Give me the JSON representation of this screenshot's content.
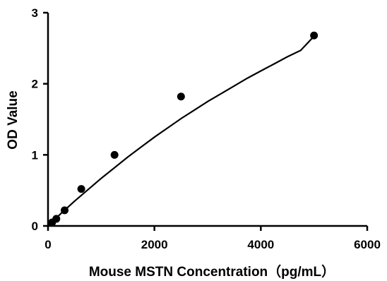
{
  "chart_data": {
    "type": "scatter",
    "title": "",
    "xlabel": "Mouse MSTN  Concentration（pg/mL）",
    "ylabel": "OD Value",
    "xlim": [
      0,
      6000
    ],
    "ylim": [
      0,
      3
    ],
    "xticks": [
      0,
      2000,
      4000,
      6000
    ],
    "yticks": [
      0,
      1,
      2,
      3
    ],
    "grid": false,
    "legend": "none",
    "series": [
      {
        "x": [
          78,
          156,
          312,
          625,
          1250,
          2500,
          5000
        ],
        "y": [
          0.05,
          0.1,
          0.22,
          0.52,
          1.0,
          1.82,
          2.68
        ]
      }
    ],
    "fit_curve": {
      "type": "polynomial",
      "x": [
        0,
        250,
        500,
        750,
        1000,
        1250,
        1500,
        1750,
        2000,
        2250,
        2500,
        2750,
        3000,
        3250,
        3500,
        3750,
        4000,
        4250,
        4500,
        4750,
        5000
      ],
      "y": [
        0.0,
        0.18,
        0.35,
        0.51,
        0.67,
        0.82,
        0.97,
        1.11,
        1.25,
        1.38,
        1.51,
        1.63,
        1.75,
        1.86,
        1.97,
        2.08,
        2.18,
        2.28,
        2.38,
        2.47,
        2.67
      ]
    },
    "colors": {
      "points": "#000000",
      "line": "#000000",
      "axis": "#000000"
    }
  }
}
